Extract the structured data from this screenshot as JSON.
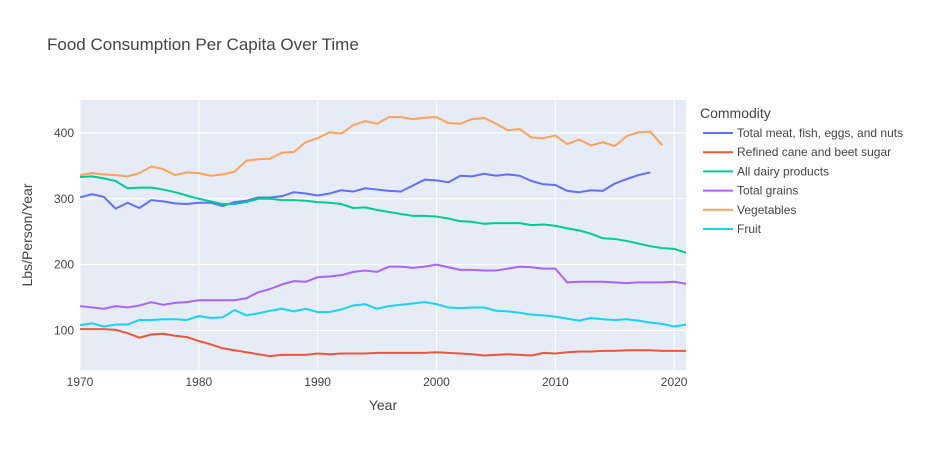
{
  "chart_data": {
    "type": "line",
    "title": "Food Consumption Per Capita Over Time",
    "xlabel": "Year",
    "ylabel": "Lbs/Person/Year",
    "xlim": [
      1970,
      2021
    ],
    "ylim": [
      40,
      450
    ],
    "xticks": [
      1970,
      1980,
      1990,
      2000,
      2010,
      2020
    ],
    "yticks": [
      100,
      200,
      300,
      400
    ],
    "grid": true,
    "legend_title": "Commodity",
    "legend_position": "right",
    "series": [
      {
        "name": "Total meat, fish, eggs, and nuts",
        "color": "#636efa",
        "x": [
          1970,
          1971,
          1972,
          1973,
          1974,
          1975,
          1976,
          1977,
          1978,
          1979,
          1980,
          1981,
          1982,
          1983,
          1984,
          1985,
          1986,
          1987,
          1988,
          1989,
          1990,
          1991,
          1992,
          1993,
          1994,
          1995,
          1996,
          1997,
          1998,
          1999,
          2000,
          2001,
          2002,
          2003,
          2004,
          2005,
          2006,
          2007,
          2008,
          2009,
          2010,
          2011,
          2012,
          2013,
          2014,
          2015,
          2016,
          2017,
          2018
        ],
        "y": [
          302,
          307,
          303,
          285,
          294,
          286,
          298,
          296,
          293,
          292,
          294,
          294,
          289,
          295,
          297,
          302,
          302,
          304,
          310,
          308,
          305,
          308,
          313,
          311,
          316,
          314,
          312,
          311,
          320,
          329,
          328,
          325,
          335,
          334,
          338,
          335,
          337,
          335,
          327,
          322,
          321,
          312,
          310,
          313,
          312,
          323,
          330,
          336,
          340
        ]
      },
      {
        "name": "Refined cane and beet sugar",
        "color": "#ef553b",
        "x": [
          1970,
          1971,
          1972,
          1973,
          1974,
          1975,
          1976,
          1977,
          1978,
          1979,
          1980,
          1981,
          1982,
          1983,
          1984,
          1985,
          1986,
          1987,
          1988,
          1989,
          1990,
          1991,
          1992,
          1993,
          1994,
          1995,
          1996,
          1997,
          1998,
          1999,
          2000,
          2001,
          2002,
          2003,
          2004,
          2005,
          2006,
          2007,
          2008,
          2009,
          2010,
          2011,
          2012,
          2013,
          2014,
          2015,
          2016,
          2017,
          2018,
          2019,
          2020,
          2021
        ],
        "y": [
          102,
          102,
          102,
          101,
          96,
          89,
          94,
          95,
          92,
          90,
          84,
          79,
          73,
          70,
          67,
          64,
          61,
          63,
          63,
          63,
          65,
          64,
          65,
          65,
          65,
          66,
          66,
          66,
          66,
          66,
          67,
          66,
          65,
          64,
          62,
          63,
          64,
          63,
          62,
          66,
          65,
          67,
          68,
          68,
          69,
          69,
          70,
          70,
          70,
          69,
          69,
          69
        ]
      },
      {
        "name": "All dairy products",
        "color": "#00cc96",
        "x": [
          1970,
          1971,
          1972,
          1973,
          1974,
          1975,
          1976,
          1977,
          1978,
          1979,
          1980,
          1981,
          1982,
          1983,
          1984,
          1985,
          1986,
          1987,
          1988,
          1989,
          1990,
          1991,
          1992,
          1993,
          1994,
          1995,
          1996,
          1997,
          1998,
          1999,
          2000,
          2001,
          2002,
          2003,
          2004,
          2005,
          2006,
          2007,
          2008,
          2009,
          2010,
          2011,
          2012,
          2013,
          2014,
          2015,
          2016,
          2017,
          2018,
          2019,
          2020,
          2021
        ],
        "y": [
          333,
          334,
          331,
          327,
          316,
          317,
          317,
          314,
          310,
          305,
          300,
          296,
          292,
          292,
          295,
          300,
          300,
          298,
          298,
          297,
          295,
          294,
          292,
          286,
          287,
          283,
          280,
          277,
          274,
          274,
          273,
          270,
          266,
          265,
          262,
          263,
          263,
          263,
          260,
          261,
          259,
          255,
          252,
          247,
          240,
          239,
          236,
          232,
          228,
          225,
          224,
          218
        ]
      },
      {
        "name": "Total grains",
        "color": "#ab63fa",
        "x": [
          1970,
          1971,
          1972,
          1973,
          1974,
          1975,
          1976,
          1977,
          1978,
          1979,
          1980,
          1981,
          1982,
          1983,
          1984,
          1985,
          1986,
          1987,
          1988,
          1989,
          1990,
          1991,
          1992,
          1993,
          1994,
          1995,
          1996,
          1997,
          1998,
          1999,
          2000,
          2001,
          2002,
          2003,
          2004,
          2005,
          2006,
          2007,
          2008,
          2009,
          2010,
          2011,
          2012,
          2013,
          2014,
          2015,
          2016,
          2017,
          2018,
          2019,
          2020,
          2021
        ],
        "y": [
          137,
          135,
          133,
          137,
          135,
          138,
          143,
          139,
          142,
          143,
          146,
          146,
          146,
          146,
          149,
          158,
          163,
          170,
          175,
          174,
          181,
          182,
          184,
          189,
          191,
          189,
          197,
          197,
          195,
          197,
          200,
          196,
          192,
          192,
          191,
          191,
          194,
          197,
          196,
          194,
          194,
          173,
          174,
          174,
          174,
          173,
          172,
          173,
          173,
          173,
          174,
          171
        ]
      },
      {
        "name": "Vegetables",
        "color": "#ffa15a",
        "x": [
          1970,
          1971,
          1972,
          1973,
          1974,
          1975,
          1976,
          1977,
          1978,
          1979,
          1980,
          1981,
          1982,
          1983,
          1984,
          1985,
          1986,
          1987,
          1988,
          1989,
          1990,
          1991,
          1992,
          1993,
          1994,
          1995,
          1996,
          1997,
          1998,
          1999,
          2000,
          2001,
          2002,
          2003,
          2004,
          2005,
          2006,
          2007,
          2008,
          2009,
          2010,
          2011,
          2012,
          2013,
          2014,
          2015,
          2016,
          2017,
          2018,
          2019
        ],
        "y": [
          336,
          339,
          337,
          336,
          334,
          339,
          349,
          345,
          336,
          340,
          339,
          335,
          337,
          341,
          358,
          360,
          361,
          370,
          371,
          386,
          392,
          401,
          399,
          412,
          418,
          414,
          424,
          424,
          421,
          423,
          424,
          415,
          414,
          421,
          423,
          414,
          404,
          406,
          393,
          392,
          396,
          383,
          390,
          381,
          386,
          380,
          395,
          401,
          402,
          381
        ]
      },
      {
        "name": "Fruit",
        "color": "#19d3f3",
        "x": [
          1970,
          1971,
          1972,
          1973,
          1974,
          1975,
          1976,
          1977,
          1978,
          1979,
          1980,
          1981,
          1982,
          1983,
          1984,
          1985,
          1986,
          1987,
          1988,
          1989,
          1990,
          1991,
          1992,
          1993,
          1994,
          1995,
          1996,
          1997,
          1998,
          1999,
          2000,
          2001,
          2002,
          2003,
          2004,
          2005,
          2006,
          2007,
          2008,
          2009,
          2010,
          2011,
          2012,
          2013,
          2014,
          2015,
          2016,
          2017,
          2018,
          2019,
          2020,
          2021
        ],
        "y": [
          108,
          111,
          106,
          109,
          109,
          116,
          116,
          117,
          117,
          116,
          122,
          119,
          120,
          131,
          123,
          126,
          130,
          133,
          129,
          133,
          128,
          128,
          132,
          138,
          140,
          133,
          137,
          139,
          141,
          143,
          140,
          135,
          134,
          135,
          135,
          130,
          129,
          127,
          124,
          123,
          121,
          118,
          115,
          119,
          117,
          116,
          117,
          115,
          112,
          110,
          106,
          109
        ]
      }
    ]
  }
}
